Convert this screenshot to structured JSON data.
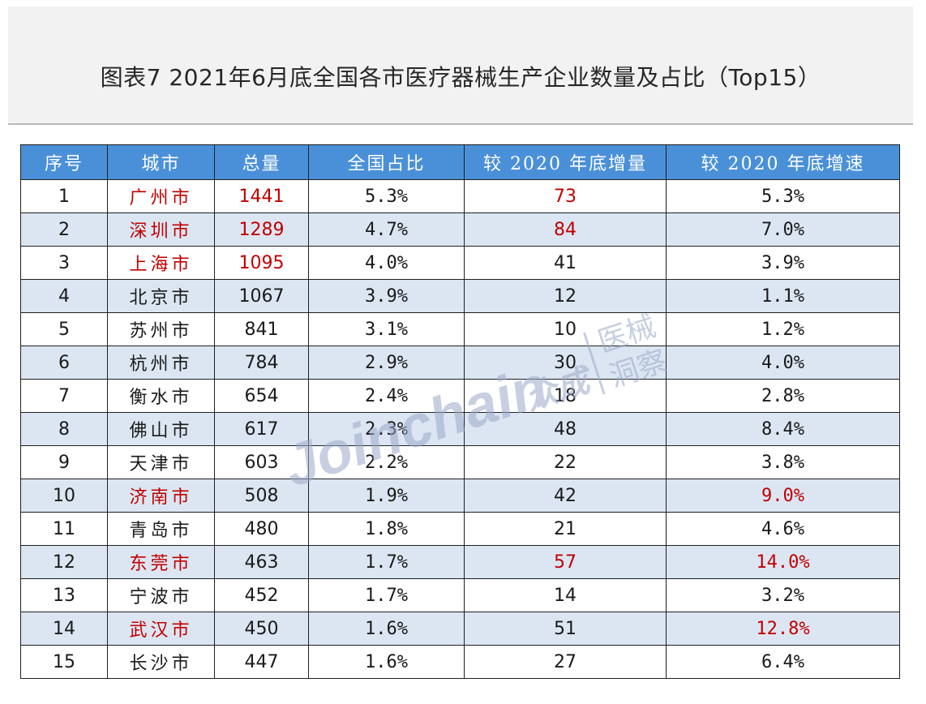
{
  "title": "图表7  2021年6月底全国各市医疗器械生产企业数量及占比（Top15）",
  "headers": [
    "序号",
    "城市",
    "总量",
    "全国占比",
    "较 2020 年底增量",
    "较 2020 年底增速"
  ],
  "rows": [
    {
      "no": "1",
      "city": "广州市",
      "total": "1441",
      "share": "5.3%",
      "incr": "73",
      "rate": "5.3%",
      "hl": {
        "city": true,
        "total": true,
        "incr": true,
        "rate": false
      }
    },
    {
      "no": "2",
      "city": "深圳市",
      "total": "1289",
      "share": "4.7%",
      "incr": "84",
      "rate": "7.0%",
      "hl": {
        "city": true,
        "total": true,
        "incr": true,
        "rate": false
      }
    },
    {
      "no": "3",
      "city": "上海市",
      "total": "1095",
      "share": "4.0%",
      "incr": "41",
      "rate": "3.9%",
      "hl": {
        "city": true,
        "total": true,
        "incr": false,
        "rate": false
      }
    },
    {
      "no": "4",
      "city": "北京市",
      "total": "1067",
      "share": "3.9%",
      "incr": "12",
      "rate": "1.1%",
      "hl": {
        "city": false,
        "total": false,
        "incr": false,
        "rate": false
      }
    },
    {
      "no": "5",
      "city": "苏州市",
      "total": "841",
      "share": "3.1%",
      "incr": "10",
      "rate": "1.2%",
      "hl": {
        "city": false,
        "total": false,
        "incr": false,
        "rate": false
      }
    },
    {
      "no": "6",
      "city": "杭州市",
      "total": "784",
      "share": "2.9%",
      "incr": "30",
      "rate": "4.0%",
      "hl": {
        "city": false,
        "total": false,
        "incr": false,
        "rate": false
      }
    },
    {
      "no": "7",
      "city": "衡水市",
      "total": "654",
      "share": "2.4%",
      "incr": "18",
      "rate": "2.8%",
      "hl": {
        "city": false,
        "total": false,
        "incr": false,
        "rate": false
      }
    },
    {
      "no": "8",
      "city": "佛山市",
      "total": "617",
      "share": "2.3%",
      "incr": "48",
      "rate": "8.4%",
      "hl": {
        "city": false,
        "total": false,
        "incr": false,
        "rate": false
      }
    },
    {
      "no": "9",
      "city": "天津市",
      "total": "603",
      "share": "2.2%",
      "incr": "22",
      "rate": "3.8%",
      "hl": {
        "city": false,
        "total": false,
        "incr": false,
        "rate": false
      }
    },
    {
      "no": "10",
      "city": "济南市",
      "total": "508",
      "share": "1.9%",
      "incr": "42",
      "rate": "9.0%",
      "hl": {
        "city": true,
        "total": false,
        "incr": false,
        "rate": true
      }
    },
    {
      "no": "11",
      "city": "青岛市",
      "total": "480",
      "share": "1.8%",
      "incr": "21",
      "rate": "4.6%",
      "hl": {
        "city": false,
        "total": false,
        "incr": false,
        "rate": false
      }
    },
    {
      "no": "12",
      "city": "东莞市",
      "total": "463",
      "share": "1.7%",
      "incr": "57",
      "rate": "14.0%",
      "hl": {
        "city": true,
        "total": false,
        "incr": true,
        "rate": true
      }
    },
    {
      "no": "13",
      "city": "宁波市",
      "total": "452",
      "share": "1.7%",
      "incr": "14",
      "rate": "3.2%",
      "hl": {
        "city": false,
        "total": false,
        "incr": false,
        "rate": false
      }
    },
    {
      "no": "14",
      "city": "武汉市",
      "total": "450",
      "share": "1.6%",
      "incr": "51",
      "rate": "12.8%",
      "hl": {
        "city": true,
        "total": false,
        "incr": false,
        "rate": true
      }
    },
    {
      "no": "15",
      "city": "长沙市",
      "total": "447",
      "share": "1.6%",
      "incr": "27",
      "rate": "6.4%",
      "hl": {
        "city": false,
        "total": false,
        "incr": false,
        "rate": false
      }
    }
  ],
  "watermark": {
    "brand_latin": "Joinchain",
    "brand_cn": "众成",
    "tag_line1": "医械",
    "tag_line2": "洞察"
  },
  "colors": {
    "header_bg": "#4a90d9",
    "highlight": "#c00000",
    "stripe": "#dce6f2",
    "watermark": "#9aa9c9"
  }
}
